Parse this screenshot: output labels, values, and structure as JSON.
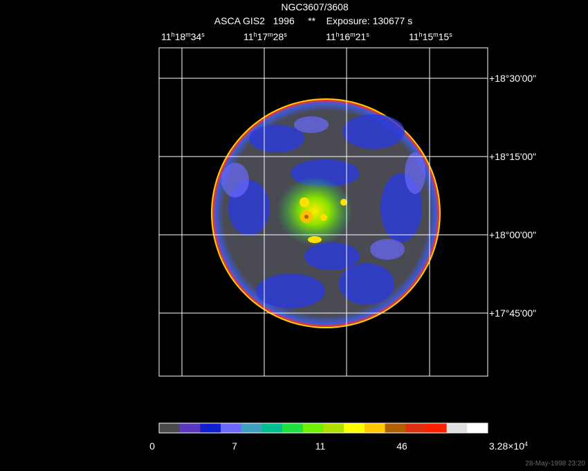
{
  "header": {
    "title": "NGC3607/3608",
    "subtitle": "ASCA GIS2   1996     **    Exposure: 130677 s"
  },
  "ra_labels": [
    [
      "11",
      "h",
      "18",
      "m",
      "34",
      "s"
    ],
    [
      "11",
      "h",
      "17",
      "m",
      "28",
      "s"
    ],
    [
      "11",
      "h",
      "16",
      "m",
      "21",
      "s"
    ],
    [
      "11",
      "h",
      "15",
      "m",
      "15",
      "s"
    ]
  ],
  "dec_labels": [
    "+18°30'00\"",
    "+18°15'00\"",
    "+18°00'00\"",
    "+17°45'00\""
  ],
  "colorbar_labels": [
    [
      "0"
    ],
    [
      "7"
    ],
    [
      "11"
    ],
    [
      "46"
    ],
    [
      "3.28×10",
      "4"
    ]
  ],
  "footer": "28-May-1998 23:20"
}
